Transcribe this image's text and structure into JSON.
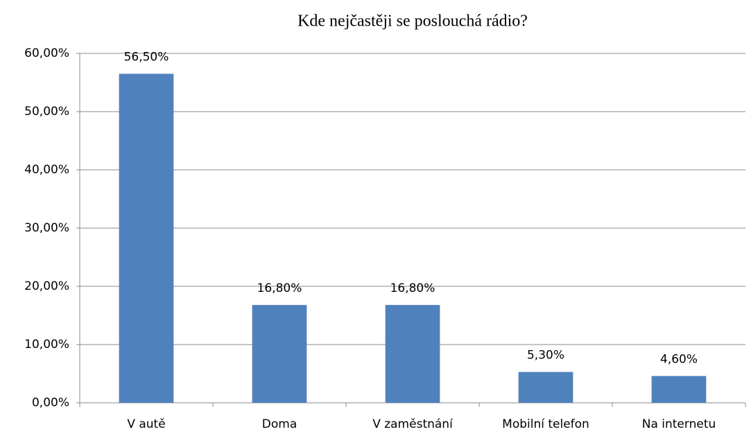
{
  "chart_data": {
    "type": "bar",
    "title": "Kde nejčastěji se poslouchá rádio?",
    "categories": [
      "V autě",
      "Doma",
      "V zaměstnání",
      "Mobilní telefon",
      "Na internetu"
    ],
    "values": [
      56.5,
      16.8,
      16.8,
      5.3,
      4.6
    ],
    "value_labels": [
      "56,50%",
      "16,80%",
      "16,80%",
      "5,30%",
      "4,60%"
    ],
    "color": "#4f81bd",
    "ylim": [
      0,
      60
    ],
    "yticks": [
      {
        "value": 0,
        "label": "0,00%"
      },
      {
        "value": 10,
        "label": "10,00%"
      },
      {
        "value": 20,
        "label": "20,00%"
      },
      {
        "value": 30,
        "label": "30,00%"
      },
      {
        "value": 40,
        "label": "40,00%"
      },
      {
        "value": 50,
        "label": "50,00%"
      },
      {
        "value": 60,
        "label": "60,00%"
      }
    ],
    "grid": true
  }
}
